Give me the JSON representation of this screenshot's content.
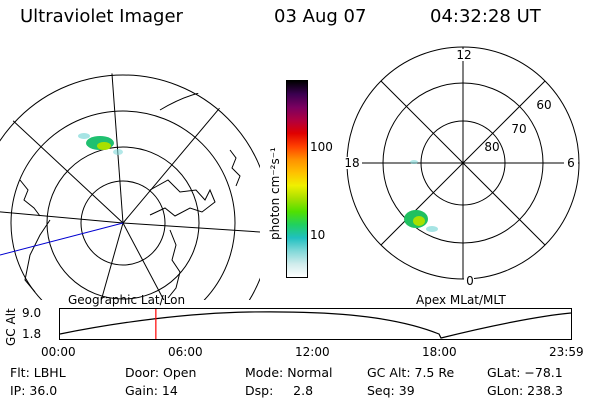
{
  "header": {
    "title": "Ultraviolet Imager",
    "date": "03 Aug 07",
    "time": "04:32:28 UT"
  },
  "colorbar": {
    "unit_label": "photon cm⁻²s⁻¹",
    "ticks": [
      "100",
      "10"
    ],
    "colors": [
      "#000000",
      "#3a0050",
      "#7a0060",
      "#b00040",
      "#e00000",
      "#ff4000",
      "#ff9000",
      "#ffc000",
      "#f0f000",
      "#a8e000",
      "#50e000",
      "#20d060",
      "#20c0c0",
      "#80d8d8",
      "#d0ecec",
      "#ffffff"
    ]
  },
  "polar_plot": {
    "mlt_labels": [
      "12",
      "18",
      "6",
      "0"
    ],
    "mlat_labels": [
      "60",
      "70",
      "80"
    ]
  },
  "captions": {
    "left": "Geographic Lat/Lon",
    "right": "Apex MLat/MLT"
  },
  "timeline": {
    "y_axis_label": "GC Alt",
    "y_ticks": [
      "9.0",
      "1.8"
    ],
    "x_ticks": [
      "00:00",
      "06:00",
      "12:00",
      "18:00",
      "23:59"
    ],
    "current_time_marker_hours": 4.54,
    "marker_color": "#ff0000"
  },
  "status": {
    "flt": "Flt: LBHL",
    "ip": "IP: 36.0",
    "door": "Door: Open",
    "gain": "Gain: 14",
    "mode": "Mode: Normal",
    "dsp": "Dsp:     2.8",
    "gcalt": "GC Alt: 7.5 Re",
    "seq": "Seq: 39",
    "glat": "GLat: −78.1",
    "glon": "GLon: 238.3"
  }
}
